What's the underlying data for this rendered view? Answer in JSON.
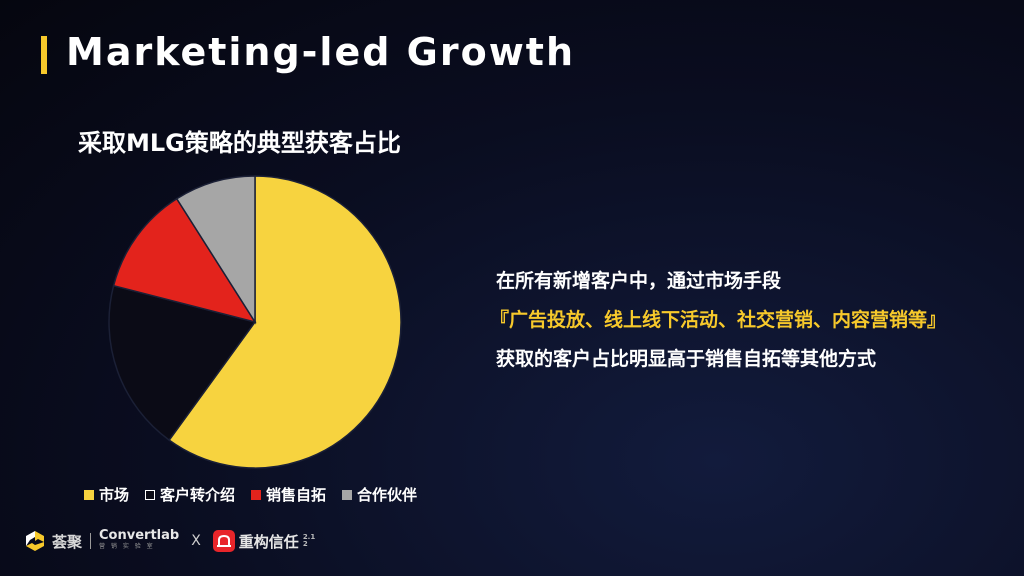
{
  "header": {
    "title": "Marketing-led Growth"
  },
  "chart_data": {
    "type": "pie",
    "title": "采取MLG策略的典型获客占比",
    "categories": [
      "市场",
      "客户转介绍",
      "销售自拓",
      "合作伙伴"
    ],
    "values": [
      60,
      19,
      12,
      9
    ],
    "colors": [
      "#f7d33f",
      "#0b0b16",
      "#e3231c",
      "#a6a6a6"
    ],
    "slice_border": "#1b2036",
    "start": "12 o'clock",
    "direction": "clockwise",
    "legend_position": "bottom"
  },
  "text": {
    "line1": "在所有新增客户中，通过市场手段",
    "line2": "『广告投放、线上线下活动、社交营销、内容营销等』",
    "line3": "获取的客户占比明显高于销售自拓等其他方式"
  },
  "footer": {
    "brand1": "荟聚",
    "brand2_name": "Convertlab",
    "brand2_sub": "营 销 实 验 室",
    "separator": "X",
    "brand3": "重构信任",
    "brand3_suffix_top": "2.1",
    "brand3_suffix_bottom": "2",
    "icons": [
      "huiju-logo-icon",
      "convertlab-logo-icon",
      "brand-logo-icon"
    ]
  }
}
